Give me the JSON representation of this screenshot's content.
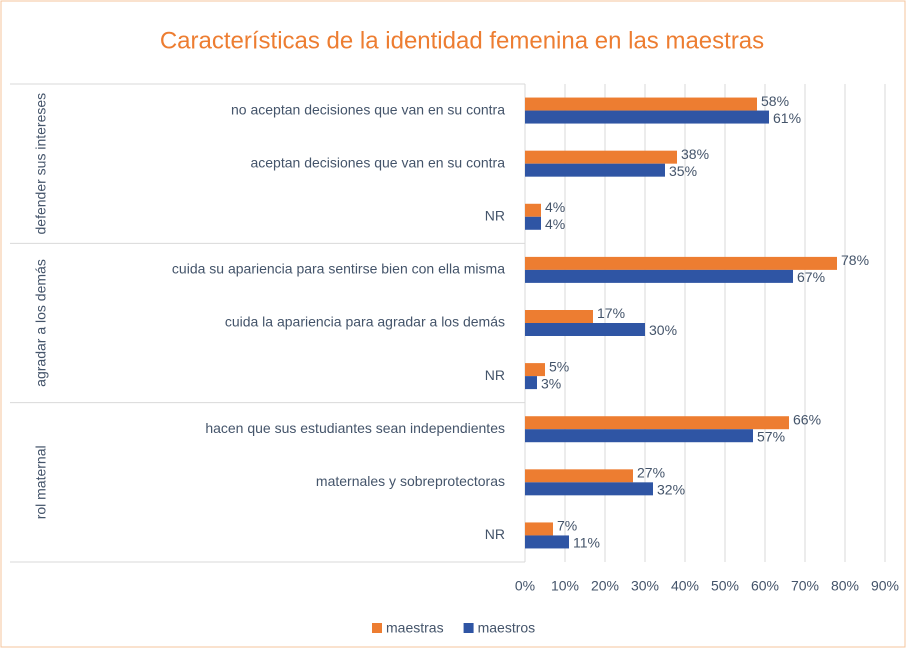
{
  "chart_data": {
    "type": "bar",
    "orientation": "horizontal",
    "title": "Características de la identidad femenina en las maestras",
    "groups": [
      {
        "name": "defender sus intereses",
        "categories": [
          "no aceptan decisiones que van en su contra",
          "aceptan decisiones que van en su contra",
          "NR"
        ]
      },
      {
        "name": "agradar a los demás",
        "categories": [
          "cuida su apariencia para sentirse bien con ella misma",
          "cuida la apariencia para agradar a los demás",
          "NR"
        ]
      },
      {
        "name": "rol maternal",
        "categories": [
          "hacen que sus estudiantes sean independientes",
          "maternales y sobreprotectoras",
          "NR"
        ]
      }
    ],
    "series": [
      {
        "name": "maestras",
        "color": "#ed7d31",
        "values": [
          58,
          38,
          4,
          78,
          17,
          5,
          66,
          27,
          7
        ],
        "value_labels": [
          "58%",
          "38%",
          "4%",
          "78%",
          "17%",
          "5%",
          "66%",
          "27%",
          "7%"
        ]
      },
      {
        "name": "maestros",
        "color": "#2f55a4",
        "values": [
          61,
          35,
          4,
          67,
          30,
          3,
          57,
          32,
          11
        ],
        "value_labels": [
          "61%",
          "35%",
          "4%",
          "67%",
          "30%",
          "3%",
          "57%",
          "32%",
          "11%"
        ]
      }
    ],
    "xlim": [
      0,
      90
    ],
    "xticks": [
      {
        "value": 0,
        "label": "0%"
      },
      {
        "value": 10,
        "label": "10%"
      },
      {
        "value": 20,
        "label": "20%"
      },
      {
        "value": 30,
        "label": "30%"
      },
      {
        "value": 40,
        "label": "40%"
      },
      {
        "value": 50,
        "label": "50%"
      },
      {
        "value": 60,
        "label": "60%"
      },
      {
        "value": 70,
        "label": "70%"
      },
      {
        "value": 80,
        "label": "80%"
      },
      {
        "value": 90,
        "label": "90%"
      }
    ],
    "grid": true,
    "legend": "bottom"
  }
}
